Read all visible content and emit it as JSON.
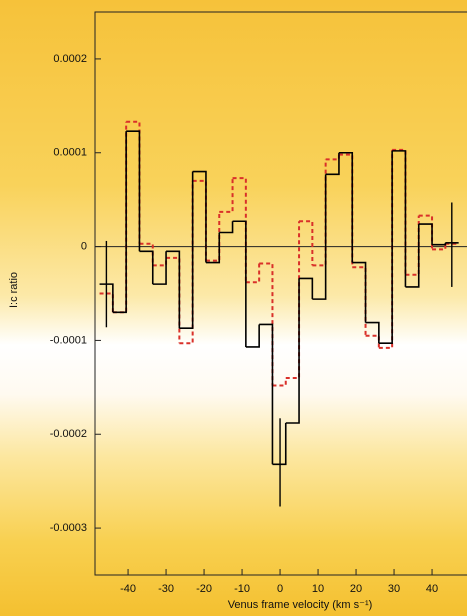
{
  "chart_data": {
    "type": "histogram",
    "xlabel": "Venus frame velocity (km s⁻¹)",
    "ylabel": "I:c ratio",
    "bins": [
      -47.5,
      -44,
      -40.5,
      -37,
      -33.5,
      -30,
      -26.5,
      -23,
      -19.5,
      -16,
      -12.5,
      -9,
      -5.5,
      -2,
      1.5,
      5,
      8.5,
      12,
      15.5,
      19,
      22.5,
      26,
      29.5,
      33,
      36.5,
      40,
      43.5,
      47
    ],
    "series": [
      {
        "color": "#000000",
        "style": "solid",
        "values": [
          -4e-05,
          -7e-05,
          0.000123,
          -5e-06,
          -4e-05,
          -5e-06,
          -8.7e-05,
          8e-05,
          -1.7e-05,
          1.5e-05,
          2.7e-05,
          -0.000107,
          -8.3e-05,
          -0.000232,
          -0.000188,
          -3.4e-05,
          -5.6e-05,
          7.7e-05,
          0.0001,
          -1.7e-05,
          -8.1e-05,
          -0.000103,
          0.000102,
          -4.3e-05,
          2.4e-05,
          2e-06,
          4e-06
        ]
      },
      {
        "color": "#d9302a",
        "style": "dashed",
        "values": [
          -5e-05,
          -7e-05,
          0.000133,
          3e-06,
          -2e-05,
          -1.2e-05,
          -0.000103,
          7e-05,
          -1.5e-05,
          3.7e-05,
          7.3e-05,
          -3.8e-05,
          -1.8e-05,
          -0.000148,
          -0.00014,
          2.7e-05,
          -2e-05,
          9.3e-05,
          9.8e-05,
          -2.2e-05,
          -9.5e-05,
          -0.000108,
          0.000103,
          -3e-05,
          3.3e-05,
          -3e-06,
          3e-06
        ]
      }
    ],
    "error_bars": {
      "x": [
        -45.7,
        0,
        45.2
      ],
      "values": [
        -4e-05,
        -0.00023,
        2e-06
      ],
      "errors": [
        4.6e-05,
        4.7e-05,
        4.5e-05
      ]
    },
    "xlim": [
      -48.7,
      49.2
    ],
    "ylim": [
      -0.00035,
      0.00025
    ],
    "xticks": [
      -40,
      -30,
      -20,
      -10,
      0,
      10,
      20,
      30,
      40
    ],
    "yticks": [
      0.0002,
      0.0001,
      0,
      -0.0001,
      -0.0002,
      -0.0003
    ],
    "zero_line": true
  }
}
